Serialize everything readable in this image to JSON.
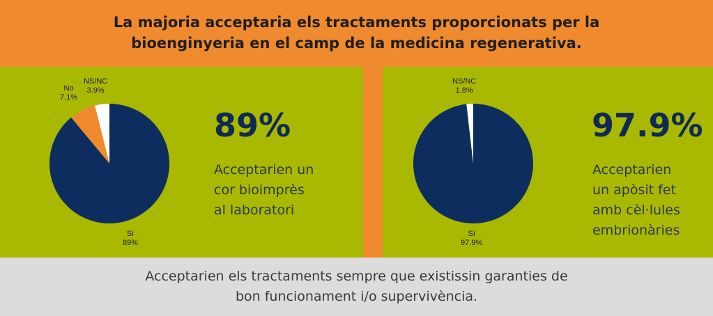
{
  "header": {
    "title_line1": "La majoria acceptaria els tractaments proporcionats per la",
    "title_line2": "bioenginyeria en el camp de la medicina regenerativa."
  },
  "colors": {
    "si": "#0d2d5e",
    "no": "#f08a2e",
    "nsnc": "#ffffff",
    "panel": "#a9b800",
    "header": "#f08a2e",
    "footer": "#dcdcdc"
  },
  "chart_data": [
    {
      "type": "pie",
      "slices": [
        {
          "label": "Sí",
          "value": 89,
          "display": "89%",
          "color": "#0d2d5e"
        },
        {
          "label": "No",
          "value": 7.1,
          "display": "7.1%",
          "color": "#f08a2e"
        },
        {
          "label": "NS/NC",
          "value": 3.9,
          "display": "3.9%",
          "color": "#ffffff"
        }
      ],
      "headline": "89%",
      "description": [
        "Acceptarien un",
        "cor bioimprès",
        "al laboratori"
      ]
    },
    {
      "type": "pie",
      "slices": [
        {
          "label": "Sí",
          "value": 97.9,
          "display": "97.9%",
          "color": "#0d2d5e"
        },
        {
          "label": "NS/NC",
          "value": 1.8,
          "display": "1.8%",
          "color": "#ffffff"
        }
      ],
      "headline": "97.9%",
      "description": [
        "Acceptarien",
        "un apòsit fet",
        "amb cèl·lules",
        "embrionàries"
      ]
    }
  ],
  "footer": {
    "line1": "Acceptarien els tractaments sempre que existissin garanties de",
    "line2": "bon funcionament i/o supervivència."
  }
}
